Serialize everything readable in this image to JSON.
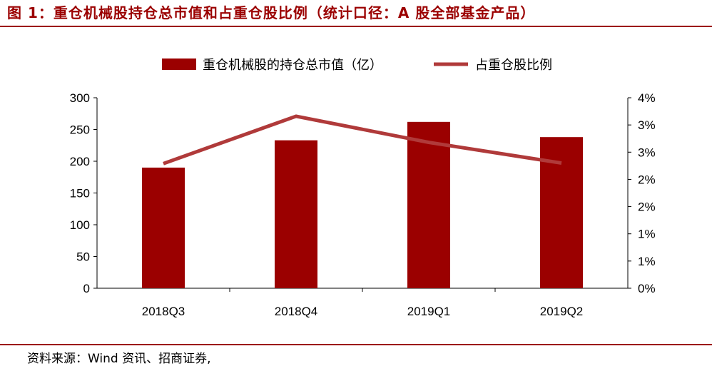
{
  "header": {
    "title": "图 1：重仓机械股持仓总市值和占重仓股比例（统计口径：A 股全部基金产品）"
  },
  "footer": {
    "source": "资料来源：Wind 资讯、招商证券,"
  },
  "colors": {
    "bar": "#9b0000",
    "line": "#b03a3a",
    "title": "#9b0000",
    "axis": "#000000"
  },
  "chart_data": {
    "type": "bar",
    "title": "",
    "xlabel": "",
    "ylabel": "",
    "categories": [
      "2018Q3",
      "2018Q4",
      "2019Q1",
      "2019Q2"
    ],
    "series": [
      {
        "name": "重仓机械股的持仓总市值（亿）",
        "type": "bar",
        "axis": "left",
        "values": [
          190,
          233,
          262,
          238
        ]
      },
      {
        "name": "占重仓股比例",
        "type": "line",
        "axis": "right",
        "values": [
          0.0229,
          0.0316,
          0.0268,
          0.023
        ]
      }
    ],
    "ylim": [
      0,
      300
    ],
    "yticks": [
      "300",
      "250",
      "200",
      "150",
      "100",
      "50",
      "0"
    ],
    "y2lim": [
      0,
      0.035
    ],
    "y2ticks": [
      "4%",
      "3%",
      "3%",
      "2%",
      "2%",
      "1%",
      "1%",
      "0%"
    ],
    "grid": false,
    "legend": "top-center"
  }
}
